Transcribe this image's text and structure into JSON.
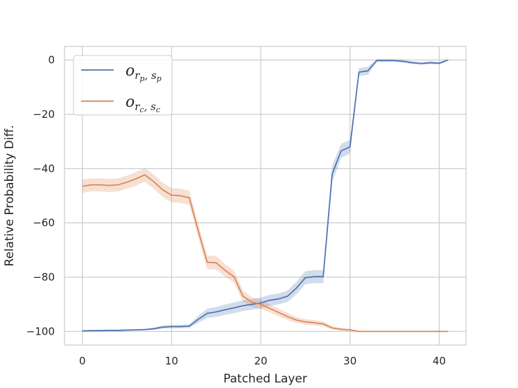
{
  "chart_data": {
    "type": "line",
    "xlabel": "Patched Layer",
    "ylabel": "Relative Probability Diff.",
    "xlim": [
      -2,
      43
    ],
    "ylim": [
      -105,
      5
    ],
    "xticks": [
      0,
      10,
      20,
      30,
      40
    ],
    "yticks": [
      0,
      -20,
      -40,
      -60,
      -80,
      -100
    ],
    "xtick_labels": [
      "0",
      "10",
      "20",
      "30",
      "40"
    ],
    "ytick_labels": [
      "0",
      "−20",
      "−40",
      "−60",
      "−80",
      "−100"
    ],
    "grid": true,
    "legend_position": "top-left",
    "x": [
      0,
      1,
      2,
      3,
      4,
      5,
      6,
      7,
      8,
      9,
      10,
      11,
      12,
      13,
      14,
      15,
      16,
      17,
      18,
      19,
      20,
      21,
      22,
      23,
      24,
      25,
      26,
      27,
      28,
      29,
      30,
      31,
      32,
      33,
      34,
      35,
      36,
      37,
      38,
      39,
      40,
      41
    ],
    "series": [
      {
        "name": "o_{r_p, s_p}",
        "legend_main": "o",
        "legend_sub": "r",
        "legend_subsub1": "p",
        "legend_sub2": "s",
        "legend_subsub2": "p",
        "color": "#4c72b0",
        "values": [
          -99.8,
          -99.7,
          -99.7,
          -99.6,
          -99.6,
          -99.5,
          -99.4,
          -99.3,
          -99.0,
          -98.4,
          -98.2,
          -98.2,
          -98.0,
          -95.5,
          -93.3,
          -92.8,
          -92.0,
          -91.3,
          -90.5,
          -90.0,
          -89.5,
          -88.5,
          -88.0,
          -87.0,
          -84.0,
          -80.2,
          -79.8,
          -79.8,
          -42.0,
          -33.5,
          -32.0,
          -4.5,
          -4.0,
          -0.2,
          -0.2,
          -0.2,
          -0.5,
          -1.0,
          -1.3,
          -1.0,
          -1.2,
          0.0
        ],
        "band": [
          0.3,
          0.3,
          0.3,
          0.3,
          0.3,
          0.3,
          0.3,
          0.3,
          0.4,
          0.6,
          0.6,
          0.6,
          0.7,
          1.3,
          1.7,
          1.8,
          1.9,
          2.0,
          2.0,
          2.0,
          2.0,
          2.0,
          2.0,
          2.1,
          2.3,
          2.4,
          2.4,
          2.4,
          3.0,
          2.6,
          2.5,
          1.5,
          1.5,
          0.5,
          0.5,
          0.5,
          0.5,
          0.5,
          0.5,
          0.5,
          0.5,
          0.2
        ]
      },
      {
        "name": "o_{r_c, s_c}",
        "legend_main": "o",
        "legend_sub": "r",
        "legend_subsub1": "c",
        "legend_sub2": "s",
        "legend_subsub2": "c",
        "color": "#dd8452",
        "values": [
          -46.5,
          -46.0,
          -46.0,
          -46.2,
          -46.0,
          -45.0,
          -43.8,
          -42.3,
          -44.8,
          -47.8,
          -49.8,
          -50.0,
          -50.8,
          -63.0,
          -74.5,
          -74.7,
          -77.5,
          -79.8,
          -87.0,
          -89.2,
          -90.0,
          -91.5,
          -93.0,
          -94.5,
          -95.8,
          -96.5,
          -96.8,
          -97.2,
          -98.7,
          -99.2,
          -99.4,
          -100.0,
          -100.0,
          -100.0,
          -100.0,
          -100.0,
          -100.0,
          -100.0,
          -100.0,
          -100.0,
          -100.0,
          -100.0
        ],
        "band": [
          2.4,
          2.4,
          2.4,
          2.4,
          2.4,
          2.4,
          2.5,
          2.5,
          2.6,
          2.6,
          2.6,
          2.6,
          2.6,
          2.6,
          2.5,
          2.5,
          2.3,
          2.2,
          2.0,
          1.8,
          1.6,
          1.5,
          1.4,
          1.3,
          1.1,
          1.0,
          1.0,
          0.9,
          0.6,
          0.5,
          0.4,
          0.1,
          0.05,
          0.05,
          0.05,
          0.05,
          0.05,
          0.05,
          0.05,
          0.05,
          0.05,
          0.05
        ]
      }
    ]
  }
}
